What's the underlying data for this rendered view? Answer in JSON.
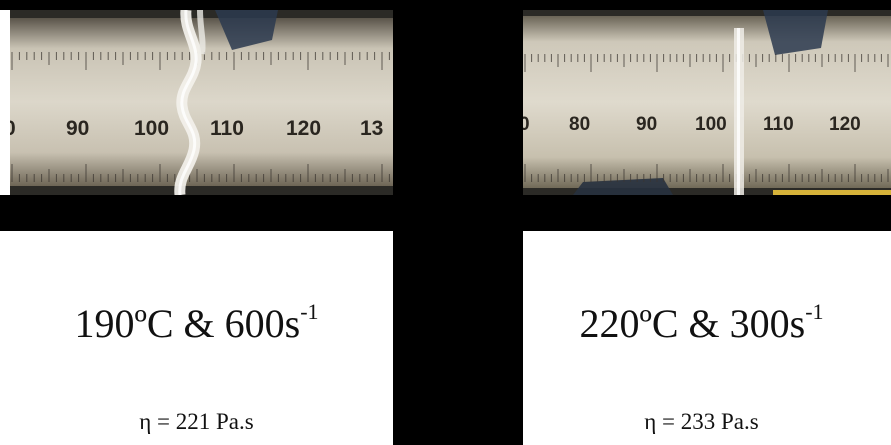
{
  "panels": [
    {
      "ruler_labels": [
        "0",
        "90",
        "100",
        "110",
        "120",
        "13"
      ],
      "condition": {
        "temperature": "190ºC",
        "joiner": "&",
        "rate": "600s",
        "exponent": "-1"
      },
      "viscosity": "η = 221 Pa.s"
    },
    {
      "ruler_labels": [
        "0",
        "80",
        "90",
        "100",
        "110",
        "120"
      ],
      "condition": {
        "temperature": "220ºC",
        "joiner": "&",
        "rate": "300s",
        "exponent": "-1"
      },
      "viscosity": "η = 233 Pa.s"
    }
  ],
  "colors": {
    "ruler_face": "#d8d3c6",
    "ruler_ticks": "#3a3530",
    "background_dark": "#2b2a26",
    "divider": "#000000"
  }
}
